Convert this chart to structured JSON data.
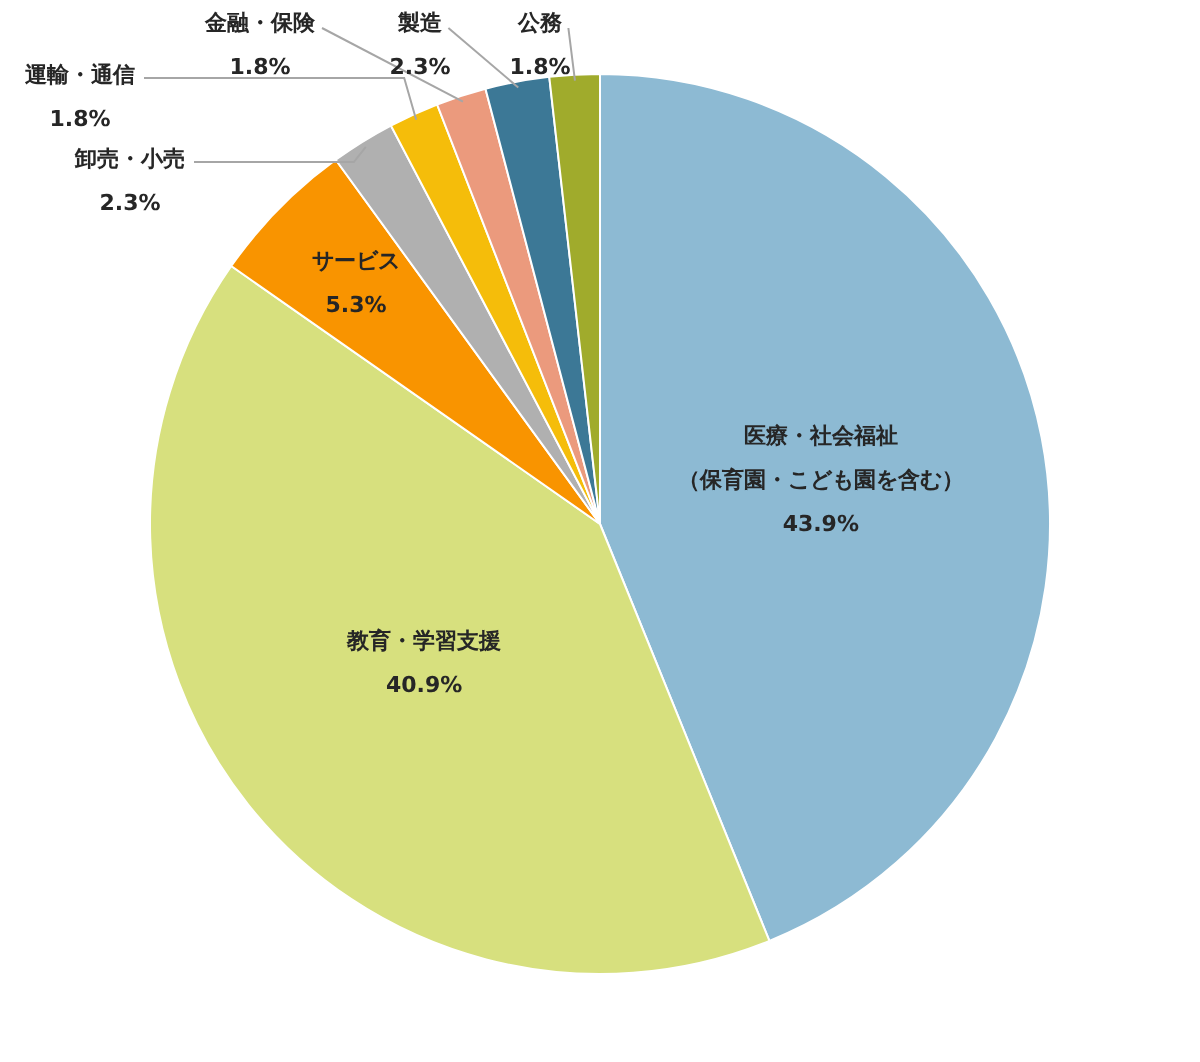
{
  "chart_data": {
    "type": "pie",
    "categories": [
      "医療・社会福祉（保育園・こども園を含む）",
      "教育・学習支援",
      "サービス",
      "卸売・小売",
      "運輸・通信",
      "金融・保険",
      "製造",
      "公務"
    ],
    "values": [
      43.9,
      40.9,
      5.3,
      2.3,
      1.8,
      1.8,
      2.3,
      1.8
    ],
    "value_labels": [
      "43.9%",
      "40.9%",
      "5.3%",
      "2.3%",
      "1.8%",
      "1.8%",
      "2.3%",
      "1.8%"
    ],
    "colors": [
      "#8dbad3",
      "#d7e07e",
      "#f99400",
      "#b0b0b0",
      "#f5bd0a",
      "#eb9a7d",
      "#3c7896",
      "#a0ab2c"
    ]
  }
}
